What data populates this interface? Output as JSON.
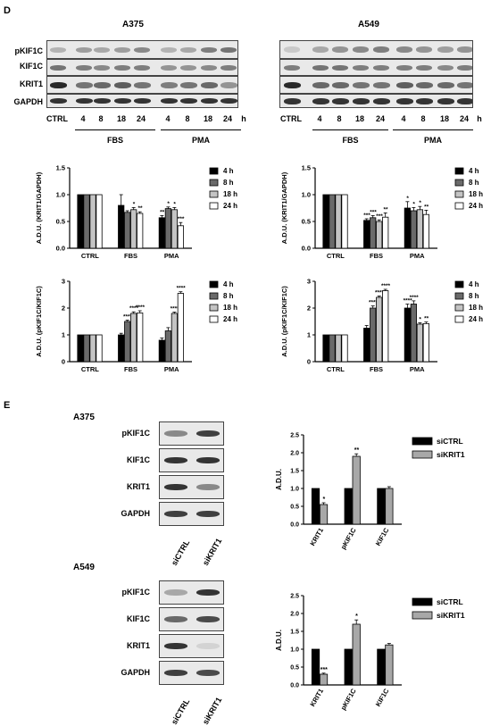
{
  "panel_d": {
    "letter": "D",
    "a375_title": "A375",
    "a549_title": "A549",
    "blot_labels": [
      "pKIF1C",
      "KIF1C",
      "KRIT1",
      "GAPDH"
    ],
    "lanes": [
      "CTRL",
      "4",
      "8",
      "18",
      "24",
      "4",
      "8",
      "18",
      "24"
    ],
    "unit": "h",
    "group_fbs": "FBS",
    "group_pma": "PMA"
  },
  "panel_e": {
    "letter": "E",
    "a375_title": "A375",
    "a549_title": "A549",
    "blot_labels": [
      "pKIF1C",
      "KIF1C",
      "KRIT1",
      "GAPDH"
    ],
    "lanes": [
      "siCTRL",
      "siKRIT1"
    ]
  },
  "colors": {
    "black": "#000000",
    "dark_gray": "#6a6a6a",
    "light_gray": "#c4c4c4",
    "white": "#ffffff",
    "si_gray": "#a8a8a8"
  },
  "chart_data": [
    {
      "id": "krit1_a375",
      "type": "bar",
      "categories": [
        "CTRL",
        "FBS",
        "PMA"
      ],
      "ylabel": "A.D.U. (KRIT1/GAPDH)",
      "ylim": [
        0,
        1.5
      ],
      "yticks": [
        "0.0",
        "0.5",
        "1.0",
        "1.5"
      ],
      "series": [
        {
          "name": "4 h",
          "values": [
            1,
            0.8,
            0.57
          ],
          "errors": [
            0,
            0.2,
            0.04
          ],
          "sig": [
            "",
            "",
            "**"
          ]
        },
        {
          "name": "8 h",
          "values": [
            1,
            0.67,
            0.74
          ],
          "errors": [
            0,
            0.03,
            0.03
          ],
          "sig": [
            "",
            "",
            "*"
          ]
        },
        {
          "name": "18 h",
          "values": [
            1,
            0.72,
            0.72
          ],
          "errors": [
            0,
            0.04,
            0.04
          ],
          "sig": [
            "",
            "*",
            "*"
          ]
        },
        {
          "name": "24 h",
          "values": [
            1,
            0.65,
            0.42
          ],
          "errors": [
            0,
            0.03,
            0.06
          ],
          "sig": [
            "",
            "**",
            "***"
          ]
        }
      ]
    },
    {
      "id": "krit1_a549",
      "type": "bar",
      "categories": [
        "CTRL",
        "FBS",
        "PMA"
      ],
      "ylabel": "A.D.U. (KRIT1/GAPDH)",
      "ylim": [
        0,
        1.5
      ],
      "yticks": [
        "0.0",
        "0.5",
        "1.0",
        "1.5"
      ],
      "series": [
        {
          "name": "4 h",
          "values": [
            1,
            0.52,
            0.75
          ],
          "errors": [
            0,
            0.03,
            0.12
          ],
          "sig": [
            "",
            "***",
            "*"
          ]
        },
        {
          "name": "8 h",
          "values": [
            1,
            0.57,
            0.7
          ],
          "errors": [
            0,
            0.04,
            0.06
          ],
          "sig": [
            "",
            "***",
            "*"
          ]
        },
        {
          "name": "18 h",
          "values": [
            1,
            0.5,
            0.72
          ],
          "errors": [
            0,
            0.03,
            0.06
          ],
          "sig": [
            "",
            "***",
            "*"
          ]
        },
        {
          "name": "24 h",
          "values": [
            1,
            0.58,
            0.63
          ],
          "errors": [
            0,
            0.08,
            0.08
          ],
          "sig": [
            "",
            "**",
            "**"
          ]
        }
      ]
    },
    {
      "id": "pkif1c_a375",
      "type": "bar",
      "categories": [
        "CTRL",
        "FBS",
        "PMA"
      ],
      "ylabel": "A.D.U. (pKIF1C/KIF1C)",
      "ylim": [
        0,
        3
      ],
      "yticks": [
        "0",
        "1",
        "2",
        "3"
      ],
      "series": [
        {
          "name": "4 h",
          "values": [
            1,
            1.0,
            0.8
          ],
          "errors": [
            0,
            0.06,
            0.08
          ],
          "sig": [
            "",
            "",
            ""
          ]
        },
        {
          "name": "8 h",
          "values": [
            1,
            1.5,
            1.15
          ],
          "errors": [
            0,
            0.05,
            0.12
          ],
          "sig": [
            "",
            "****",
            ""
          ]
        },
        {
          "name": "18 h",
          "values": [
            1,
            1.8,
            1.8
          ],
          "errors": [
            0,
            0.06,
            0.05
          ],
          "sig": [
            "",
            "****",
            "****"
          ]
        },
        {
          "name": "24 h",
          "values": [
            1,
            1.82,
            2.55
          ],
          "errors": [
            0,
            0.08,
            0.06
          ],
          "sig": [
            "",
            "****",
            "****"
          ]
        }
      ]
    },
    {
      "id": "pkif1c_a549",
      "type": "bar",
      "categories": [
        "CTRL",
        "FBS",
        "PMA"
      ],
      "ylabel": "A.D.U. (pKIF1C/KIF1C)",
      "ylim": [
        0,
        3
      ],
      "yticks": [
        "0",
        "1",
        "2",
        "3"
      ],
      "series": [
        {
          "name": "4 h",
          "values": [
            1,
            1.25,
            2.0
          ],
          "errors": [
            0,
            0.1,
            0.15
          ],
          "sig": [
            "",
            "",
            "****"
          ]
        },
        {
          "name": "8 h",
          "values": [
            1,
            2.0,
            2.15
          ],
          "errors": [
            0,
            0.08,
            0.12
          ],
          "sig": [
            "",
            "****",
            "****"
          ]
        },
        {
          "name": "18 h",
          "values": [
            1,
            2.4,
            1.4
          ],
          "errors": [
            0,
            0.05,
            0.05
          ],
          "sig": [
            "",
            "****",
            "*"
          ]
        },
        {
          "name": "24 h",
          "values": [
            1,
            2.65,
            1.42
          ],
          "errors": [
            0,
            0.05,
            0.06
          ],
          "sig": [
            "",
            "****",
            "**"
          ]
        }
      ]
    },
    {
      "id": "si_a375",
      "type": "bar",
      "categories": [
        "KRIT1",
        "pKIF1C",
        "KIF1C"
      ],
      "ylabel": "A.D.U.",
      "ylim": [
        0,
        2.5
      ],
      "yticks": [
        "0.0",
        "0.5",
        "1.0",
        "1.5",
        "2.0",
        "2.5"
      ],
      "series": [
        {
          "name": "siCTRL",
          "values": [
            1,
            1,
            1
          ],
          "errors": [
            0,
            0,
            0
          ],
          "sig": [
            "",
            "",
            ""
          ]
        },
        {
          "name": "siKRIT1",
          "values": [
            0.55,
            1.9,
            1.0
          ],
          "errors": [
            0.05,
            0.07,
            0.05
          ],
          "sig": [
            "*",
            "**",
            ""
          ]
        }
      ]
    },
    {
      "id": "si_a549",
      "type": "bar",
      "categories": [
        "KRIT1",
        "pKIF1C",
        "KIF1C"
      ],
      "ylabel": "A.D.U.",
      "ylim": [
        0,
        2.5
      ],
      "yticks": [
        "0.0",
        "0.5",
        "1.0",
        "1.5",
        "2.0",
        "2.5"
      ],
      "series": [
        {
          "name": "siCTRL",
          "values": [
            1,
            1,
            1
          ],
          "errors": [
            0,
            0,
            0
          ],
          "sig": [
            "",
            "",
            ""
          ]
        },
        {
          "name": "siKRIT1",
          "values": [
            0.3,
            1.7,
            1.12
          ],
          "errors": [
            0.03,
            0.12,
            0.04
          ],
          "sig": [
            "***",
            "*",
            ""
          ]
        }
      ]
    }
  ]
}
